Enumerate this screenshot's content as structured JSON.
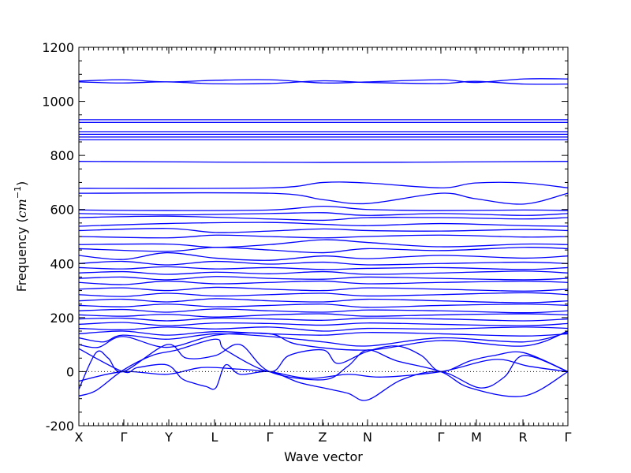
{
  "chart_data": {
    "type": "line",
    "title": "",
    "xlabel": "Wave vector",
    "ylabel": "Frequency (cm^-1)",
    "ylabel_parts": {
      "prefix": "Frequency (",
      "var": "cm",
      "sup": "−1",
      "suffix": ")"
    },
    "ylim": [
      -200,
      1200
    ],
    "xlim": [
      0,
      1
    ],
    "y_ticks": [
      -200,
      0,
      200,
      400,
      600,
      800,
      1000,
      1200
    ],
    "x_ticks": [
      {
        "label": "X",
        "pos": 0.0
      },
      {
        "label": "Γ",
        "pos": 0.0919
      },
      {
        "label": "Y",
        "pos": 0.1839
      },
      {
        "label": "L",
        "pos": 0.2774
      },
      {
        "label": "Γ",
        "pos": 0.3903
      },
      {
        "label": "Z",
        "pos": 0.4984
      },
      {
        "label": "N",
        "pos": 0.5903
      },
      {
        "label": "Γ",
        "pos": 0.7403
      },
      {
        "label": "M",
        "pos": 0.8129
      },
      {
        "label": "R",
        "pos": 0.9081
      },
      {
        "label": "Γ",
        "pos": 1.0
      }
    ],
    "zero_line": {
      "y": 0,
      "style": "dotted"
    },
    "line_color": "#0000ff",
    "series": [
      {
        "x": [
          0,
          0.09,
          0.18,
          0.28,
          0.39,
          0.5,
          0.59,
          0.74,
          0.81,
          0.91,
          1.0
        ],
        "y": [
          1075,
          1080,
          1072,
          1078,
          1080,
          1068,
          1072,
          1080,
          1070,
          1083,
          1083
        ]
      },
      {
        "x": [
          0,
          0.09,
          0.18,
          0.28,
          0.39,
          0.5,
          0.59,
          0.74,
          0.81,
          0.91,
          1.0
        ],
        "y": [
          1072,
          1068,
          1072,
          1065,
          1066,
          1076,
          1070,
          1066,
          1074,
          1064,
          1064
        ]
      },
      {
        "x": [
          0,
          1.0
        ],
        "y": [
          932,
          932
        ]
      },
      {
        "x": [
          0,
          1.0
        ],
        "y": [
          922,
          922
        ]
      },
      {
        "x": [
          0,
          1.0
        ],
        "y": [
          888,
          888
        ]
      },
      {
        "x": [
          0,
          1.0
        ],
        "y": [
          878,
          878
        ]
      },
      {
        "x": [
          0,
          1.0
        ],
        "y": [
          868,
          868
        ]
      },
      {
        "x": [
          0,
          1.0
        ],
        "y": [
          858,
          858
        ]
      },
      {
        "x": [
          0,
          0.5,
          1.0
        ],
        "y": [
          778,
          774,
          778
        ]
      },
      {
        "x": [
          0,
          0.39,
          0.5,
          0.59,
          0.74,
          0.81,
          0.91,
          1.0
        ],
        "y": [
          678,
          680,
          700,
          698,
          680,
          698,
          698,
          680
        ]
      },
      {
        "x": [
          0,
          0.39,
          0.5,
          0.59,
          0.74,
          0.81,
          0.91,
          1.0
        ],
        "y": [
          660,
          660,
          636,
          622,
          660,
          640,
          620,
          660
        ]
      },
      {
        "x": [
          0,
          0.18,
          0.39,
          0.5,
          0.59,
          0.74,
          0.91,
          1.0
        ],
        "y": [
          598,
          596,
          598,
          612,
          600,
          596,
          598,
          596
        ]
      },
      {
        "x": [
          0,
          0.18,
          0.39,
          0.5,
          0.59,
          0.74,
          0.91,
          1.0
        ],
        "y": [
          585,
          580,
          585,
          588,
          578,
          585,
          578,
          585
        ]
      },
      {
        "x": [
          0,
          0.18,
          0.39,
          0.5,
          0.59,
          0.74,
          0.91,
          1.0
        ],
        "y": [
          570,
          575,
          565,
          560,
          570,
          570,
          565,
          570
        ]
      },
      {
        "x": [
          0,
          0.18,
          0.39,
          0.5,
          0.59,
          0.74,
          0.91,
          1.0
        ],
        "y": [
          538,
          548,
          552,
          545,
          540,
          548,
          540,
          538
        ]
      },
      {
        "x": [
          0,
          0.18,
          0.28,
          0.39,
          0.5,
          0.59,
          0.74,
          0.91,
          1.0
        ],
        "y": [
          522,
          530,
          515,
          520,
          528,
          522,
          520,
          526,
          522
        ]
      },
      {
        "x": [
          0,
          0.18,
          0.28,
          0.39,
          0.5,
          0.59,
          0.74,
          0.91,
          1.0
        ],
        "y": [
          500,
          495,
          505,
          500,
          495,
          500,
          505,
          498,
          500
        ]
      },
      {
        "x": [
          0,
          0.18,
          0.28,
          0.39,
          0.5,
          0.59,
          0.74,
          0.91,
          1.0
        ],
        "y": [
          470,
          472,
          460,
          470,
          488,
          478,
          462,
          472,
          470
        ]
      },
      {
        "x": [
          0,
          0.18,
          0.28,
          0.39,
          0.5,
          0.59,
          0.74,
          0.91,
          1.0
        ],
        "y": [
          455,
          445,
          460,
          450,
          440,
          455,
          448,
          460,
          455
        ]
      },
      {
        "x": [
          0,
          0.09,
          0.18,
          0.28,
          0.39,
          0.5,
          0.59,
          0.74,
          0.91,
          1.0
        ],
        "y": [
          430,
          415,
          440,
          420,
          412,
          428,
          418,
          430,
          420,
          428
        ]
      },
      {
        "x": [
          0,
          0.09,
          0.18,
          0.28,
          0.39,
          0.5,
          0.59,
          0.74,
          0.91,
          1.0
        ],
        "y": [
          400,
          408,
          395,
          408,
          398,
          405,
          395,
          400,
          405,
          400
        ]
      },
      {
        "x": [
          0,
          0.09,
          0.18,
          0.28,
          0.39,
          0.5,
          0.59,
          0.74,
          0.91,
          1.0
        ],
        "y": [
          385,
          380,
          388,
          380,
          385,
          378,
          382,
          385,
          378,
          385
        ]
      },
      {
        "x": [
          0,
          0.09,
          0.18,
          0.28,
          0.39,
          0.5,
          0.59,
          0.74,
          0.91,
          1.0
        ],
        "y": [
          365,
          370,
          360,
          368,
          362,
          370,
          360,
          365,
          372,
          365
        ]
      },
      {
        "x": [
          0,
          0.09,
          0.18,
          0.28,
          0.39,
          0.5,
          0.59,
          0.74,
          0.91,
          1.0
        ],
        "y": [
          345,
          350,
          340,
          352,
          345,
          342,
          350,
          345,
          340,
          345
        ]
      },
      {
        "x": [
          0,
          0.09,
          0.18,
          0.28,
          0.39,
          0.5,
          0.59,
          0.74,
          0.91,
          1.0
        ],
        "y": [
          330,
          322,
          335,
          325,
          330,
          335,
          325,
          330,
          335,
          330
        ]
      },
      {
        "x": [
          0,
          0.09,
          0.18,
          0.28,
          0.39,
          0.5,
          0.59,
          0.74,
          0.91,
          1.0
        ],
        "y": [
          305,
          310,
          300,
          312,
          305,
          300,
          310,
          305,
          298,
          305
        ]
      },
      {
        "x": [
          0,
          0.09,
          0.18,
          0.28,
          0.39,
          0.5,
          0.59,
          0.74,
          0.91,
          1.0
        ],
        "y": [
          285,
          278,
          290,
          280,
          285,
          290,
          280,
          285,
          292,
          285
        ]
      },
      {
        "x": [
          0,
          0.09,
          0.18,
          0.28,
          0.39,
          0.5,
          0.59,
          0.74,
          0.91,
          1.0
        ],
        "y": [
          262,
          268,
          258,
          270,
          262,
          258,
          268,
          262,
          255,
          262
        ]
      },
      {
        "x": [
          0,
          0.09,
          0.18,
          0.28,
          0.39,
          0.5,
          0.59,
          0.74,
          0.91,
          1.0
        ],
        "y": [
          245,
          240,
          250,
          240,
          245,
          250,
          238,
          245,
          250,
          245
        ]
      },
      {
        "x": [
          0,
          0.09,
          0.18,
          0.28,
          0.39,
          0.5,
          0.59,
          0.74,
          0.91,
          1.0
        ],
        "y": [
          225,
          230,
          220,
          232,
          225,
          220,
          228,
          225,
          218,
          225
        ]
      },
      {
        "x": [
          0,
          0.09,
          0.18,
          0.28,
          0.39,
          0.5,
          0.59,
          0.74,
          0.91,
          1.0
        ],
        "y": [
          210,
          205,
          212,
          202,
          210,
          214,
          205,
          210,
          214,
          210
        ]
      },
      {
        "x": [
          0,
          0.09,
          0.18,
          0.28,
          0.39,
          0.5,
          0.59,
          0.74,
          0.91,
          1.0
        ],
        "y": [
          195,
          198,
          188,
          198,
          195,
          190,
          198,
          195,
          188,
          195
        ]
      },
      {
        "x": [
          0,
          0.09,
          0.18,
          0.28,
          0.39,
          0.5,
          0.59,
          0.74,
          0.91,
          1.0
        ],
        "y": [
          175,
          182,
          170,
          180,
          178,
          172,
          180,
          175,
          170,
          178
        ]
      },
      {
        "x": [
          0,
          0.09,
          0.18,
          0.28,
          0.39,
          0.5,
          0.59,
          0.74,
          0.91,
          1.0
        ],
        "y": [
          160,
          155,
          165,
          158,
          165,
          150,
          160,
          158,
          165,
          160
        ]
      },
      {
        "x": [
          0,
          0.09,
          0.18,
          0.28,
          0.39,
          0.5,
          0.59,
          0.74,
          0.91,
          1.0
        ],
        "y": [
          140,
          150,
          135,
          148,
          140,
          135,
          145,
          140,
          132,
          140
        ]
      },
      {
        "x": [
          0,
          0.05,
          0.09,
          0.18,
          0.28,
          0.39,
          0.5,
          0.59,
          0.74,
          0.91,
          1.0
        ],
        "y": [
          125,
          110,
          135,
          120,
          140,
          130,
          110,
          95,
          125,
          110,
          145
        ]
      },
      {
        "x": [
          0,
          0.04,
          0.09,
          0.18,
          0.28,
          0.39,
          0.45,
          0.59,
          0.74,
          0.91,
          1.0
        ],
        "y": [
          100,
          90,
          130,
          90,
          135,
          140,
          100,
          80,
          115,
          95,
          150
        ]
      },
      {
        "x": [
          0,
          0.035,
          0.09,
          0.15,
          0.2,
          0.28,
          0.3,
          0.39,
          0.43,
          0.5,
          0.53,
          0.59,
          0.65,
          0.7,
          0.74,
          0.8,
          0.85,
          0.91,
          1.0
        ],
        "y": [
          -90,
          -70,
          5,
          60,
          80,
          120,
          80,
          0,
          60,
          80,
          30,
          75,
          95,
          60,
          0,
          40,
          60,
          70,
          0
        ]
      },
      {
        "x": [
          0,
          0.035,
          0.06,
          0.09,
          0.18,
          0.22,
          0.28,
          0.33,
          0.39,
          0.5,
          0.55,
          0.59,
          0.65,
          0.74,
          0.8,
          0.91,
          1.0
        ],
        "y": [
          -65,
          70,
          50,
          0,
          100,
          50,
          60,
          100,
          0,
          -30,
          20,
          80,
          40,
          0,
          -60,
          -90,
          0
        ]
      },
      {
        "x": [
          0,
          0.09,
          0.12,
          0.18,
          0.21,
          0.23,
          0.26,
          0.28,
          0.3,
          0.33,
          0.39,
          0.45,
          0.5,
          0.55,
          0.59,
          0.66,
          0.74,
          0.82,
          0.87,
          0.91,
          1.0
        ],
        "y": [
          85,
          0,
          15,
          25,
          -25,
          -40,
          -55,
          -60,
          25,
          -10,
          0,
          -40,
          -60,
          -80,
          -105,
          -30,
          0,
          -60,
          -20,
          60,
          0
        ]
      },
      {
        "x": [
          0,
          0.09,
          0.18,
          0.25,
          0.32,
          0.39,
          0.47,
          0.55,
          0.62,
          0.74,
          0.85,
          0.92,
          1.0
        ],
        "y": [
          -35,
          0,
          -10,
          15,
          10,
          0,
          -25,
          -10,
          -20,
          0,
          45,
          20,
          0
        ]
      }
    ]
  }
}
